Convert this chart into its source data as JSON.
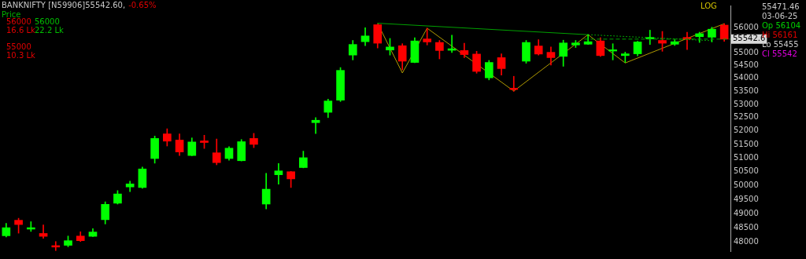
{
  "chart_data": {
    "type": "candlestick",
    "title": "BANKNIFTY [N59906]55542.60,",
    "subtitle": "-0.65%",
    "categories": [
      null,
      null,
      null,
      null,
      null,
      null,
      null,
      null,
      null,
      null,
      null,
      null,
      null,
      null,
      null,
      null,
      null,
      null,
      null,
      null,
      null,
      null,
      null,
      null,
      null,
      null,
      null,
      null,
      null,
      null,
      null,
      null,
      null,
      null,
      null,
      null,
      null,
      null,
      null,
      null,
      null,
      null,
      null,
      null,
      null,
      null,
      null,
      null,
      null,
      null,
      null,
      null,
      null,
      null,
      null,
      null,
      null,
      null,
      null
    ],
    "ohlc": [
      [
        48230,
        48660,
        48190,
        48510
      ],
      [
        48770,
        48840,
        48320,
        48620
      ],
      [
        48460,
        48720,
        48380,
        48510
      ],
      [
        48310,
        48610,
        48140,
        48210
      ],
      [
        47890,
        48030,
        47720,
        47840
      ],
      [
        47900,
        48220,
        47850,
        48060
      ],
      [
        48220,
        48370,
        48030,
        48060
      ],
      [
        48210,
        48480,
        48200,
        48360
      ],
      [
        48790,
        49420,
        48640,
        49330
      ],
      [
        49370,
        49820,
        49340,
        49700
      ],
      [
        49950,
        50160,
        49780,
        50060
      ],
      [
        49930,
        50670,
        49900,
        50600
      ],
      [
        50980,
        51810,
        50810,
        51720
      ],
      [
        51890,
        52080,
        51440,
        51620
      ],
      [
        51660,
        51890,
        51090,
        51220
      ],
      [
        51090,
        51740,
        51080,
        51590
      ],
      [
        51630,
        51840,
        51350,
        51570
      ],
      [
        51190,
        51700,
        50750,
        50830
      ],
      [
        50980,
        51420,
        50920,
        51360
      ],
      [
        50900,
        51680,
        50890,
        51600
      ],
      [
        51720,
        51910,
        51380,
        51500
      ],
      [
        49340,
        50440,
        49170,
        49870
      ],
      [
        50390,
        50800,
        50050,
        50530
      ],
      [
        50500,
        50510,
        49930,
        50240
      ],
      [
        50650,
        51250,
        50640,
        51010
      ],
      [
        52310,
        52500,
        51900,
        52400
      ],
      [
        52700,
        53200,
        52500,
        53130
      ],
      [
        53160,
        54420,
        53110,
        54310
      ],
      [
        54910,
        55490,
        54720,
        55330
      ],
      [
        55440,
        56000,
        55280,
        55670
      ],
      [
        56120,
        56130,
        55190,
        55380
      ],
      [
        55110,
        55570,
        54910,
        55230
      ],
      [
        55280,
        55360,
        54330,
        54670
      ],
      [
        54620,
        55600,
        54610,
        55470
      ],
      [
        55550,
        55980,
        55310,
        55430
      ],
      [
        55410,
        55490,
        54760,
        55090
      ],
      [
        55100,
        55700,
        55010,
        55160
      ],
      [
        55090,
        55380,
        54810,
        54930
      ],
      [
        54950,
        55060,
        54200,
        54270
      ],
      [
        54020,
        54700,
        53940,
        54620
      ],
      [
        54810,
        54960,
        54130,
        54380
      ],
      [
        53620,
        54080,
        53500,
        53570
      ],
      [
        54670,
        55490,
        54590,
        55410
      ],
      [
        55270,
        55520,
        54910,
        54950
      ],
      [
        55020,
        55230,
        54520,
        54810
      ],
      [
        54860,
        55500,
        54470,
        55390
      ],
      [
        55310,
        55490,
        55210,
        55390
      ],
      [
        55340,
        55720,
        55330,
        55440
      ],
      [
        55470,
        55600,
        54860,
        54890
      ],
      [
        55070,
        55360,
        54720,
        55120
      ],
      [
        54890,
        55030,
        54620,
        54960
      ],
      [
        54960,
        55460,
        54880,
        55430
      ],
      [
        55550,
        55900,
        55330,
        55610
      ],
      [
        55490,
        55850,
        55060,
        55380
      ],
      [
        55340,
        55520,
        55290,
        55440
      ],
      [
        55610,
        55820,
        55130,
        55550
      ],
      [
        55640,
        55820,
        55410,
        55760
      ],
      [
        55620,
        56020,
        55430,
        55940
      ],
      [
        56104,
        56161,
        55455,
        55542.6
      ]
    ],
    "colors": [
      "#00ff00",
      "#ff0000",
      "#00ff00",
      "#ff0000",
      "#ff0000",
      "#00ff00",
      "#ff0000",
      "#00ff00",
      "#00ff00",
      "#00ff00",
      "#00ff00",
      "#00ff00",
      "#00ff00",
      "#ff0000",
      "#ff0000",
      "#00ff00",
      "#ff0000",
      "#ff0000",
      "#00ff00",
      "#00ff00",
      "#ff0000",
      "#00ff00",
      "#00ff00",
      "#ff0000",
      "#00ff00",
      "#00ff00",
      "#00ff00",
      "#00ff00",
      "#00ff00",
      "#00ff00",
      "#ff0000",
      "#00ff00",
      "#ff0000",
      "#00ff00",
      "#ff0000",
      "#ff0000",
      "#00ff00",
      "#ff0000",
      "#ff0000",
      "#00ff00",
      "#ff0000",
      "#ff0000",
      "#00ff00",
      "#ff0000",
      "#ff0000",
      "#00ff00",
      "#00ff00",
      "#00ff00",
      "#ff0000",
      "#00ff00",
      "#00ff00",
      "#00ff00",
      "#00ff00",
      "#ff0000",
      "#00ff00",
      "#ff0000",
      "#00ff00",
      "#00ff00",
      "#ff0000"
    ],
    "series": [
      {
        "type": "line",
        "color": "#b09a00",
        "values": [
          null,
          null,
          null,
          null,
          null,
          null,
          null,
          null,
          null,
          null,
          null,
          null,
          null,
          null,
          null,
          null,
          null,
          null,
          null,
          null,
          null,
          null,
          null,
          null,
          null,
          null,
          null,
          null,
          null,
          null,
          56180,
          null,
          54210,
          null,
          55980,
          null,
          null,
          null,
          null,
          null,
          null,
          53510,
          null,
          null,
          null,
          null,
          null,
          55720,
          null,
          null,
          54600,
          null,
          null,
          null,
          null,
          null,
          null,
          null,
          56160
        ]
      },
      {
        "type": "line",
        "color": "#00a000",
        "values": [
          null,
          null,
          null,
          null,
          null,
          null,
          null,
          null,
          null,
          null,
          null,
          null,
          null,
          null,
          null,
          null,
          null,
          null,
          null,
          null,
          null,
          null,
          null,
          null,
          null,
          null,
          null,
          null,
          null,
          null,
          56180,
          null,
          null,
          null,
          null,
          null,
          null,
          null,
          null,
          null,
          null,
          null,
          null,
          null,
          null,
          null,
          null,
          55720,
          null,
          null,
          null,
          null,
          null,
          null,
          null,
          null,
          null,
          null,
          null
        ]
      },
      {
        "type": "line",
        "color": "#00a000",
        "line_style": "dotted",
        "values": [
          null,
          null,
          null,
          null,
          null,
          null,
          null,
          null,
          null,
          null,
          null,
          null,
          null,
          null,
          null,
          null,
          null,
          null,
          null,
          null,
          null,
          null,
          null,
          null,
          null,
          null,
          null,
          null,
          null,
          null,
          null,
          null,
          null,
          null,
          null,
          null,
          null,
          null,
          null,
          null,
          null,
          null,
          null,
          null,
          null,
          null,
          null,
          55720,
          null,
          null,
          null,
          null,
          null,
          null,
          null,
          null,
          null,
          55480,
          null
        ]
      }
    ],
    "log": true,
    "ylim": [
      47700,
      56900
    ],
    "yticks": [
      48000,
      48500,
      49000,
      49500,
      50000,
      50500,
      51000,
      51500,
      52000,
      52500,
      53000,
      53500,
      54000,
      54500,
      55000,
      56000
    ],
    "tick_labels": "y",
    "ref_lines": [
      {
        "axis": "y",
        "value": 55542.6,
        "label": "55542.6",
        "color": "#00a000",
        "line_style": "dashed"
      }
    ],
    "annotations": [
      "Price",
      "56000",
      "56000",
      "16.6 Lk",
      "22.2 Lk",
      "55000",
      "10.3 Lk",
      "LOG",
      "55471.46",
      "03-06-25",
      "Op 56104",
      "Hi 56161",
      "Lo 55455",
      "Cl 55542"
    ]
  }
}
